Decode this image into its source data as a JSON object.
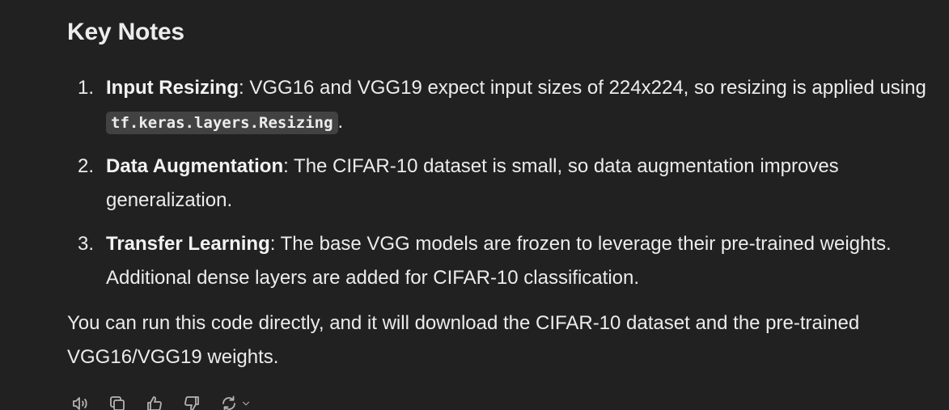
{
  "heading": "Key Notes",
  "notes": [
    {
      "number": "1.",
      "title": "Input Resizing",
      "text_before_code": ": VGG16 and VGG19 expect input sizes of 224x224, so resizing is applied using ",
      "code": "tf.keras.layers.Resizing",
      "text_after_code": "."
    },
    {
      "number": "2.",
      "title": "Data Augmentation",
      "text": ": The CIFAR-10 dataset is small, so data augmentation improves generalization."
    },
    {
      "number": "3.",
      "title": "Transfer Learning",
      "text": ": The base VGG models are frozen to leverage their pre-trained weights. Additional dense layers are added for CIFAR-10 classification."
    }
  ],
  "closing": "You can run this code directly, and it will download the CIFAR-10 dataset and the pre-trained VGG16/VGG19 weights.",
  "actions": [
    {
      "icon": "speaker-icon"
    },
    {
      "icon": "copy-icon"
    },
    {
      "icon": "thumbs-up-icon"
    },
    {
      "icon": "thumbs-down-icon"
    },
    {
      "icon": "regenerate-icon"
    }
  ]
}
